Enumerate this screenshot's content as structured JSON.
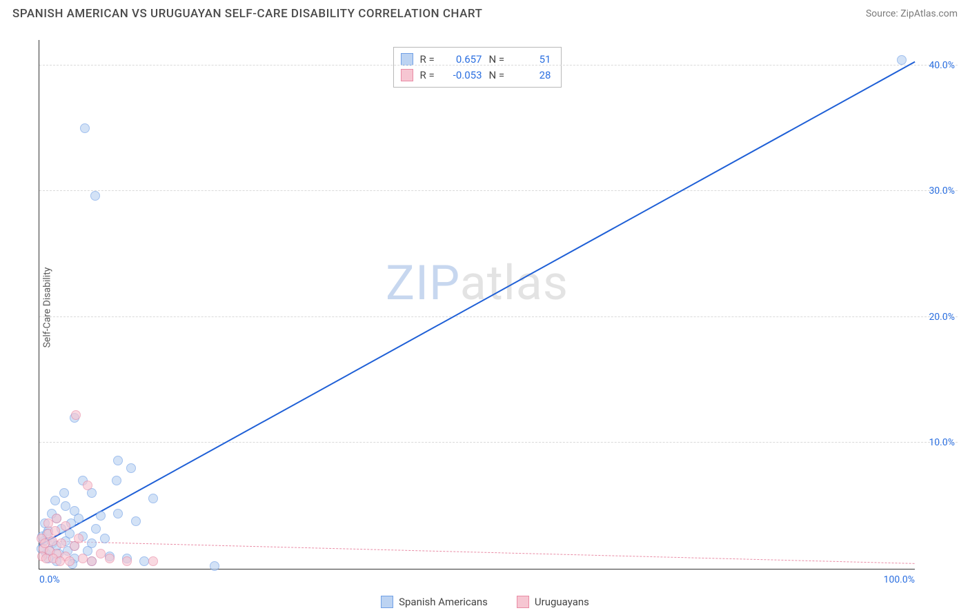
{
  "header": {
    "title": "SPANISH AMERICAN VS URUGUAYAN SELF-CARE DISABILITY CORRELATION CHART",
    "source": "Source: ZipAtlas.com"
  },
  "watermark": {
    "part1": "ZIP",
    "part2": "atlas"
  },
  "chart": {
    "type": "scatter",
    "background_color": "#ffffff",
    "grid_color": "#d9d9d9",
    "axis_color": "#333333",
    "ylabel": "Self-Care Disability",
    "label_fontsize": 14,
    "tick_fontsize": 14,
    "tick_color": "#2b6fe0",
    "xlim": [
      0,
      100
    ],
    "ylim": [
      0,
      42
    ],
    "xticks": [
      {
        "value": 0,
        "label": "0.0%"
      },
      {
        "value": 100,
        "label": "100.0%"
      }
    ],
    "yticks": [
      {
        "value": 10,
        "label": "10.0%"
      },
      {
        "value": 20,
        "label": "20.0%"
      },
      {
        "value": 30,
        "label": "30.0%"
      },
      {
        "value": 40,
        "label": "40.0%"
      }
    ],
    "marker_radius": 7,
    "marker_stroke_width": 1.2,
    "series": [
      {
        "name": "Spanish Americans",
        "fill_color": "#bcd3f2",
        "stroke_color": "#6f9fe6",
        "fill_opacity": 0.65,
        "trend": {
          "x1": 0,
          "y1": 1.8,
          "x2": 100,
          "y2": 40.2,
          "color": "#1e5fd6",
          "width": 2.4,
          "dash": "solid"
        },
        "stats": {
          "R": "0.657",
          "N": "51"
        },
        "points": [
          [
            98.5,
            40.4
          ],
          [
            5.2,
            35.0
          ],
          [
            6.4,
            29.6
          ],
          [
            4.0,
            12.0
          ],
          [
            9.0,
            8.6
          ],
          [
            10.5,
            8.0
          ],
          [
            5.0,
            7.0
          ],
          [
            8.8,
            7.0
          ],
          [
            6.0,
            6.0
          ],
          [
            13.0,
            5.6
          ],
          [
            3.0,
            5.0
          ],
          [
            4.0,
            4.6
          ],
          [
            7.0,
            4.2
          ],
          [
            9.0,
            4.4
          ],
          [
            11.0,
            3.8
          ],
          [
            2.0,
            4.0
          ],
          [
            1.0,
            3.0
          ],
          [
            2.5,
            3.2
          ],
          [
            3.5,
            2.8
          ],
          [
            5.0,
            2.6
          ],
          [
            0.5,
            2.2
          ],
          [
            1.5,
            2.0
          ],
          [
            2.0,
            1.8
          ],
          [
            3.0,
            2.2
          ],
          [
            4.0,
            1.8
          ],
          [
            6.0,
            2.0
          ],
          [
            0.8,
            1.2
          ],
          [
            1.2,
            1.4
          ],
          [
            2.2,
            1.2
          ],
          [
            3.2,
            1.4
          ],
          [
            1.0,
            0.8
          ],
          [
            2.0,
            0.6
          ],
          [
            4.0,
            0.8
          ],
          [
            6.0,
            0.6
          ],
          [
            8.0,
            1.0
          ],
          [
            10.0,
            0.8
          ],
          [
            12.0,
            0.6
          ],
          [
            0.3,
            2.6
          ],
          [
            0.6,
            3.6
          ],
          [
            1.4,
            4.4
          ],
          [
            4.5,
            4.0
          ],
          [
            6.5,
            3.2
          ],
          [
            7.5,
            2.4
          ],
          [
            5.5,
            1.4
          ],
          [
            3.8,
            0.4
          ],
          [
            20.0,
            0.2
          ],
          [
            1.8,
            5.4
          ],
          [
            2.8,
            6.0
          ],
          [
            0.2,
            1.6
          ],
          [
            0.9,
            2.8
          ],
          [
            3.6,
            3.6
          ]
        ]
      },
      {
        "name": "Uruguayans",
        "fill_color": "#f6c6d2",
        "stroke_color": "#e98aa4",
        "fill_opacity": 0.65,
        "trend": {
          "x1": 0,
          "y1": 2.2,
          "x2": 100,
          "y2": 0.4,
          "color": "#e98aa4",
          "width": 1.4,
          "dash": "6,5"
        },
        "stats": {
          "R": "-0.053",
          "N": "28"
        },
        "points": [
          [
            4.2,
            12.2
          ],
          [
            5.5,
            6.6
          ],
          [
            2.0,
            4.0
          ],
          [
            3.0,
            3.4
          ],
          [
            1.0,
            2.8
          ],
          [
            1.5,
            2.2
          ],
          [
            2.5,
            2.0
          ],
          [
            4.0,
            1.8
          ],
          [
            0.5,
            1.6
          ],
          [
            1.2,
            1.4
          ],
          [
            2.0,
            1.2
          ],
          [
            3.0,
            1.0
          ],
          [
            0.3,
            1.0
          ],
          [
            0.8,
            0.8
          ],
          [
            1.6,
            0.8
          ],
          [
            2.4,
            0.6
          ],
          [
            3.5,
            0.6
          ],
          [
            5.0,
            0.8
          ],
          [
            6.0,
            0.6
          ],
          [
            8.0,
            0.8
          ],
          [
            10.0,
            0.6
          ],
          [
            13.0,
            0.6
          ],
          [
            0.2,
            2.4
          ],
          [
            0.6,
            2.0
          ],
          [
            1.0,
            3.6
          ],
          [
            1.8,
            3.0
          ],
          [
            4.5,
            2.4
          ],
          [
            7.0,
            1.2
          ]
        ]
      }
    ]
  },
  "stat_legend": {
    "r_label": "R  =",
    "n_label": "N  ="
  },
  "bottom_legend": {
    "items": [
      "Spanish Americans",
      "Uruguayans"
    ]
  }
}
